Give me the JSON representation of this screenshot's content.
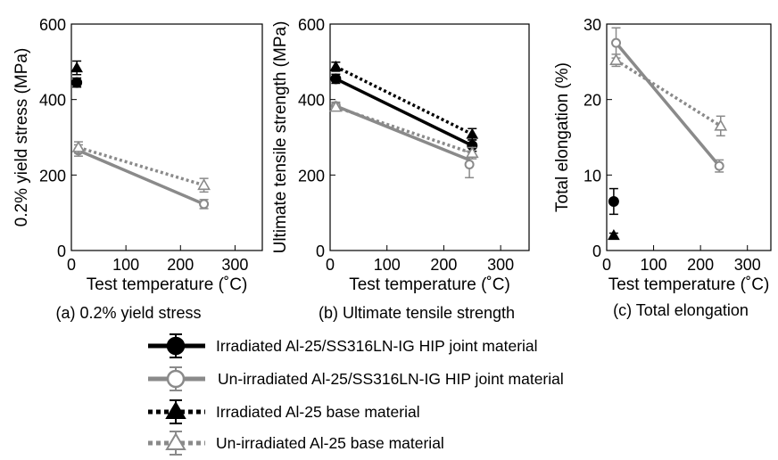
{
  "colors": {
    "irradiated": "#000000",
    "unirradiated": "#8a8a8a"
  },
  "legend": [
    {
      "label": "Irradiated Al-25/SS316LN-IG HIP joint material",
      "color": "#000000",
      "dash": "solid",
      "marker": "circle",
      "filled": true
    },
    {
      "label": "Un-irradiated Al-25/SS316LN-IG HIP joint material",
      "color": "#8a8a8a",
      "dash": "solid",
      "marker": "circle",
      "filled": false
    },
    {
      "label": "Irradiated Al-25 base material",
      "color": "#000000",
      "dash": "dotted",
      "marker": "triangle",
      "filled": true
    },
    {
      "label": "Un-irradiated Al-25 base material",
      "color": "#8a8a8a",
      "dash": "dotted",
      "marker": "triangle",
      "filled": false
    }
  ],
  "chart_data": [
    {
      "type": "scatter",
      "caption": "(a) 0.2% yield stress",
      "xlabel": "Test temperature (˚C)",
      "ylabel": "0.2% yield stress (MPa)",
      "xlim": [
        0,
        350
      ],
      "ylim": [
        0,
        600
      ],
      "xticks": [
        0,
        100,
        200,
        300
      ],
      "yticks": [
        0,
        200,
        400,
        600
      ],
      "series": [
        {
          "key": "irr_joint",
          "style": 0,
          "points": [
            {
              "x": 10,
              "y": 445,
              "err": 12
            }
          ],
          "fit": null
        },
        {
          "key": "unirr_joint",
          "style": 1,
          "points": [
            {
              "x": 13,
              "y": 265,
              "err": 15
            },
            {
              "x": 243,
              "y": 123,
              "err": 12
            }
          ],
          "fit": [
            [
              13,
              265
            ],
            [
              243,
              123
            ]
          ]
        },
        {
          "key": "irr_base",
          "style": 2,
          "points": [
            {
              "x": 10,
              "y": 484,
              "err": 18
            }
          ],
          "fit": null
        },
        {
          "key": "unirr_base",
          "style": 3,
          "points": [
            {
              "x": 13,
              "y": 273,
              "err": 15
            },
            {
              "x": 243,
              "y": 173,
              "err": 18
            }
          ],
          "fit": [
            [
              13,
              273
            ],
            [
              243,
              173
            ]
          ]
        }
      ]
    },
    {
      "type": "scatter",
      "caption": "(b) Ultimate tensile strength",
      "xlabel": "Test temperature (˚C)",
      "ylabel": "Ultimate tensile strength (MPa)",
      "xlim": [
        0,
        350
      ],
      "ylim": [
        0,
        600
      ],
      "xticks": [
        0,
        100,
        200,
        300
      ],
      "yticks": [
        0,
        200,
        400,
        600
      ],
      "series": [
        {
          "key": "irr_joint",
          "style": 0,
          "points": [
            {
              "x": 10,
              "y": 455,
              "err": 12
            },
            {
              "x": 250,
              "y": 278,
              "err": 15
            }
          ],
          "fit": [
            [
              10,
              455
            ],
            [
              250,
              278
            ]
          ]
        },
        {
          "key": "unirr_joint",
          "style": 1,
          "points": [
            {
              "x": 10,
              "y": 383,
              "err": 10
            },
            {
              "x": 245,
              "y": 228,
              "err": 35
            }
          ],
          "fit": [
            [
              10,
              383
            ],
            [
              245,
              240
            ]
          ]
        },
        {
          "key": "irr_base",
          "style": 2,
          "points": [
            {
              "x": 10,
              "y": 487,
              "err": 12
            },
            {
              "x": 250,
              "y": 308,
              "err": 15
            }
          ],
          "fit": [
            [
              10,
              487
            ],
            [
              250,
              308
            ]
          ]
        },
        {
          "key": "unirr_base",
          "style": 3,
          "points": [
            {
              "x": 10,
              "y": 380,
              "err": 10
            },
            {
              "x": 250,
              "y": 258,
              "err": 15
            }
          ],
          "fit": [
            [
              10,
              380
            ],
            [
              250,
              258
            ]
          ]
        }
      ]
    },
    {
      "type": "scatter",
      "caption": "(c) Total elongation",
      "xlabel": "Test temperature (˚C)",
      "ylabel": "Total elongation (%)",
      "xlim": [
        0,
        350
      ],
      "ylim": [
        0,
        30
      ],
      "xticks": [
        0,
        100,
        200,
        300
      ],
      "yticks": [
        0,
        10,
        20,
        30
      ],
      "series": [
        {
          "key": "irr_joint",
          "style": 0,
          "points": [
            {
              "x": 15,
              "y": 6.5,
              "err": 1.7
            }
          ],
          "fit": null
        },
        {
          "key": "unirr_joint",
          "style": 1,
          "points": [
            {
              "x": 20,
              "y": 27.5,
              "err": 2.0
            },
            {
              "x": 240,
              "y": 11.2,
              "err": 0.8
            }
          ],
          "fit": [
            [
              20,
              27.5
            ],
            [
              240,
              11.2
            ]
          ]
        },
        {
          "key": "irr_base",
          "style": 2,
          "points": [
            {
              "x": 15,
              "y": 2.0,
              "err": 0.3
            }
          ],
          "fit": null
        },
        {
          "key": "unirr_base",
          "style": 3,
          "points": [
            {
              "x": 20,
              "y": 25.2,
              "err": 0.8
            },
            {
              "x": 243,
              "y": 16.5,
              "err": 1.3
            }
          ],
          "fit": [
            [
              20,
              25.2
            ],
            [
              243,
              16.5
            ]
          ]
        }
      ]
    }
  ]
}
